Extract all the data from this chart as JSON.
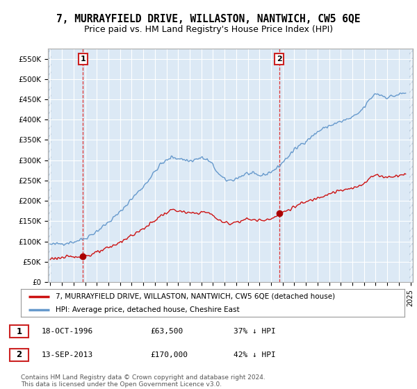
{
  "title": "7, MURRAYFIELD DRIVE, WILLASTON, NANTWICH, CW5 6QE",
  "subtitle": "Price paid vs. HM Land Registry's House Price Index (HPI)",
  "title_fontsize": 10.5,
  "subtitle_fontsize": 9,
  "bg_color": "#ffffff",
  "plot_bg_color": "#dce9f5",
  "grid_color": "#ffffff",
  "ylim": [
    0,
    575000
  ],
  "yticks": [
    0,
    50000,
    100000,
    150000,
    200000,
    250000,
    300000,
    350000,
    400000,
    450000,
    500000,
    550000
  ],
  "ytick_labels": [
    "£0",
    "£50K",
    "£100K",
    "£150K",
    "£200K",
    "£250K",
    "£300K",
    "£350K",
    "£400K",
    "£450K",
    "£500K",
    "£550K"
  ],
  "xtick_years": [
    1994,
    1995,
    1996,
    1997,
    1998,
    1999,
    2000,
    2001,
    2002,
    2003,
    2004,
    2005,
    2006,
    2007,
    2008,
    2009,
    2010,
    2011,
    2012,
    2013,
    2014,
    2015,
    2016,
    2017,
    2018,
    2019,
    2020,
    2021,
    2022,
    2023,
    2024,
    2025
  ],
  "sale1_x": 1996.8,
  "sale1_y": 63500,
  "sale2_x": 2013.7,
  "sale2_y": 170000,
  "vline_color": "#dd3333",
  "marker_color": "#aa0000",
  "hpi_color": "#6699cc",
  "price_color": "#cc1111",
  "legend_label_price": "7, MURRAYFIELD DRIVE, WILLASTON, NANTWICH, CW5 6QE (detached house)",
  "legend_label_hpi": "HPI: Average price, detached house, Cheshire East",
  "sale1_date": "18-OCT-1996",
  "sale1_price": "£63,500",
  "sale1_hpi": "37% ↓ HPI",
  "sale2_date": "13-SEP-2013",
  "sale2_price": "£170,000",
  "sale2_hpi": "42% ↓ HPI",
  "footnote": "Contains HM Land Registry data © Crown copyright and database right 2024.\nThis data is licensed under the Open Government Licence v3.0."
}
